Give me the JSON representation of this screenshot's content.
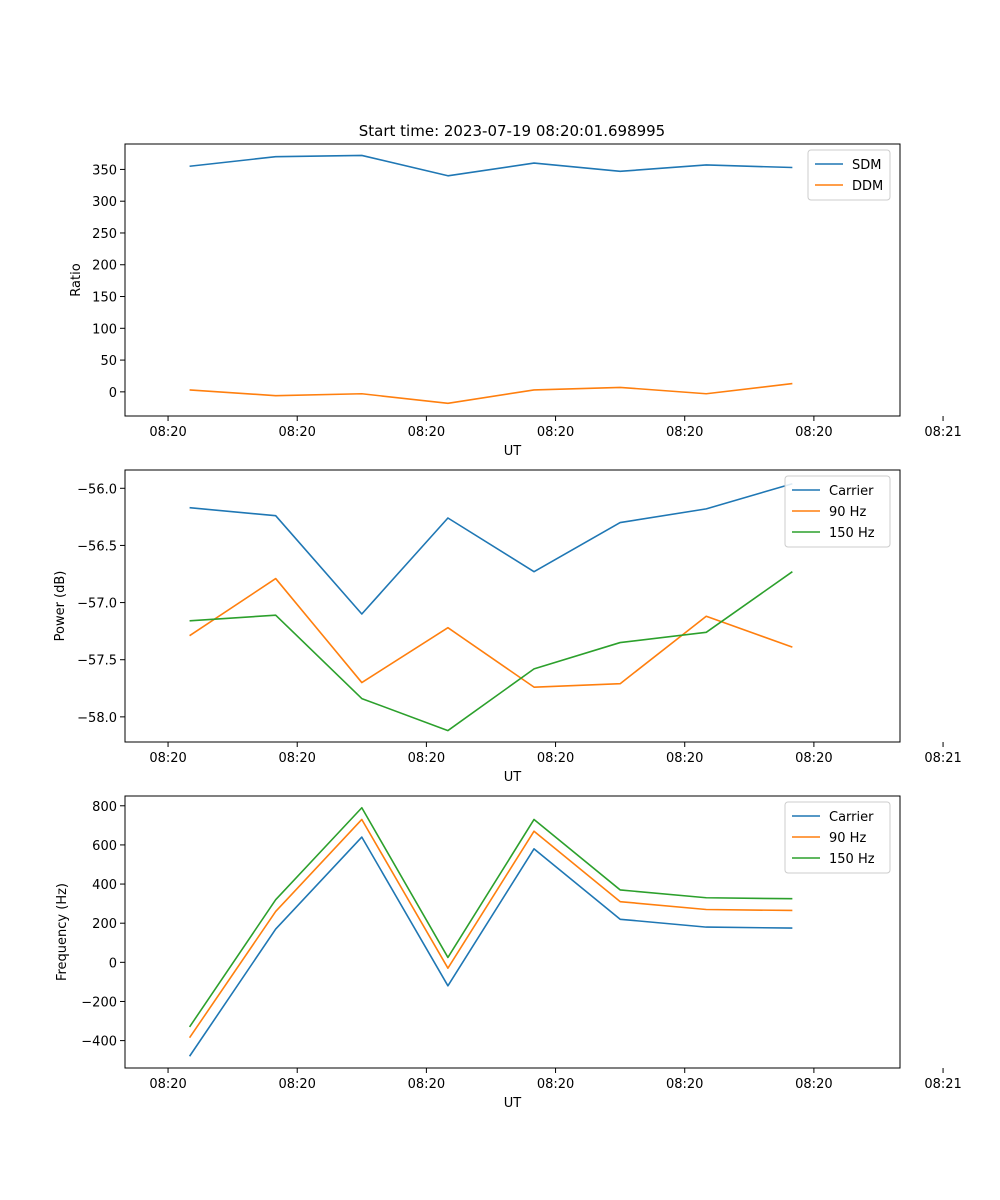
{
  "figure_title": "Start time: 2023-07-19 08:20:01.698995",
  "chart_data": [
    {
      "type": "line",
      "title": "Start time: 2023-07-19 08:20:01.698995",
      "xlabel": "UT",
      "ylabel": "Ratio",
      "xlim": [
        -0.5,
        8.5
      ],
      "x": [
        0.25,
        1.25,
        2.25,
        3.25,
        4.25,
        5.25,
        6.25,
        7.25
      ],
      "xticks": [
        0,
        1.5,
        3,
        4.5,
        6,
        7.5,
        9
      ],
      "xtick_labels": [
        "08:20",
        "08:20",
        "08:20",
        "08:20",
        "08:20",
        "08:20",
        "08:21"
      ],
      "ylim": [
        -38,
        390
      ],
      "yticks": [
        0,
        50,
        100,
        150,
        200,
        250,
        300,
        350
      ],
      "ytick_labels": [
        "0",
        "50",
        "100",
        "150",
        "200",
        "250",
        "300",
        "350"
      ],
      "legend": "top-right",
      "series": [
        {
          "name": "SDM",
          "color": "#1f77b4",
          "values": [
            355,
            370,
            372,
            340,
            360,
            347,
            357,
            353
          ]
        },
        {
          "name": "DDM",
          "color": "#ff7f0e",
          "values": [
            3,
            -6,
            -3,
            -18,
            3,
            7,
            -3,
            13
          ]
        }
      ]
    },
    {
      "type": "line",
      "title": "",
      "xlabel": "UT",
      "ylabel": "Power (dB)",
      "xlim": [
        -0.5,
        8.5
      ],
      "x": [
        0.25,
        1.25,
        2.25,
        3.25,
        4.25,
        5.25,
        6.25,
        7.25
      ],
      "xticks": [
        0,
        1.5,
        3,
        4.5,
        6,
        7.5,
        9
      ],
      "xtick_labels": [
        "08:20",
        "08:20",
        "08:20",
        "08:20",
        "08:20",
        "08:20",
        "08:21"
      ],
      "ylim": [
        -58.22,
        -55.84
      ],
      "yticks": [
        -58.0,
        -57.5,
        -57.0,
        -56.5,
        -56.0
      ],
      "ytick_labels": [
        "−58.0",
        "−57.5",
        "−57.0",
        "−56.5",
        "−56.0"
      ],
      "legend": "top-right",
      "series": [
        {
          "name": "Carrier",
          "color": "#1f77b4",
          "values": [
            -56.17,
            -56.24,
            -57.1,
            -56.26,
            -56.73,
            -56.3,
            -56.18,
            -55.96
          ]
        },
        {
          "name": "90 Hz",
          "color": "#ff7f0e",
          "values": [
            -57.29,
            -56.79,
            -57.7,
            -57.22,
            -57.74,
            -57.71,
            -57.12,
            -57.39
          ]
        },
        {
          "name": "150 Hz",
          "color": "#2ca02c",
          "values": [
            -57.16,
            -57.11,
            -57.84,
            -58.12,
            -57.58,
            -57.35,
            -57.26,
            -56.73
          ]
        }
      ]
    },
    {
      "type": "line",
      "title": "",
      "xlabel": "UT",
      "ylabel": "Frequency (Hz)",
      "xlim": [
        -0.5,
        8.5
      ],
      "x": [
        0.25,
        1.25,
        2.25,
        3.25,
        4.25,
        5.25,
        6.25,
        7.25
      ],
      "xticks": [
        0,
        1.5,
        3,
        4.5,
        6,
        7.5,
        9
      ],
      "xtick_labels": [
        "08:20",
        "08:20",
        "08:20",
        "08:20",
        "08:20",
        "08:20",
        "08:21"
      ],
      "ylim": [
        -540,
        850
      ],
      "yticks": [
        -400,
        -200,
        0,
        200,
        400,
        600,
        800
      ],
      "ytick_labels": [
        "−400",
        "−200",
        "0",
        "200",
        "400",
        "600",
        "800"
      ],
      "legend": "top-right",
      "series": [
        {
          "name": "Carrier",
          "color": "#1f77b4",
          "values": [
            -480,
            170,
            640,
            -120,
            580,
            220,
            180,
            175
          ]
        },
        {
          "name": "90 Hz",
          "color": "#ff7f0e",
          "values": [
            -385,
            260,
            730,
            -30,
            670,
            310,
            270,
            265
          ]
        },
        {
          "name": "150 Hz",
          "color": "#2ca02c",
          "values": [
            -330,
            320,
            790,
            25,
            730,
            370,
            330,
            325
          ]
        }
      ]
    }
  ]
}
